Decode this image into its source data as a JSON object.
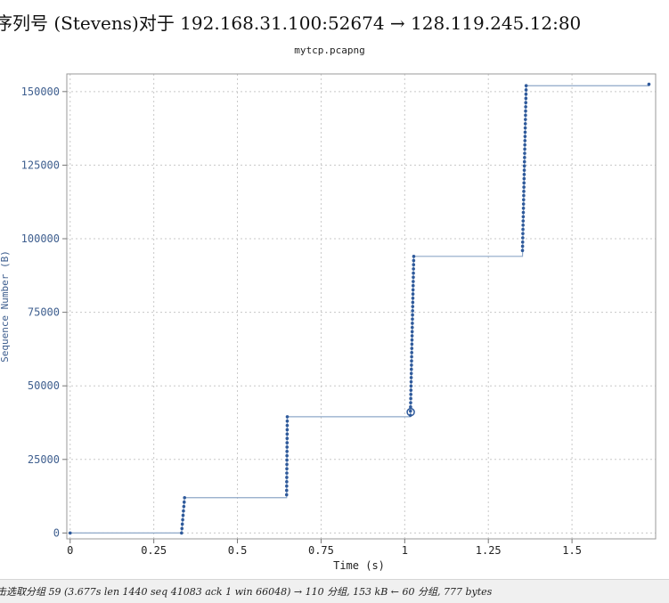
{
  "window": {
    "title": "序列号 (Stevens)对于 192.168.31.100:52674 → 128.119.245.12:80"
  },
  "chart_data": {
    "type": "scatter",
    "title": "序列号 (Stevens)对于 192.168.31.100:52674 → 128.119.245.12:80",
    "subtitle": "mytcp.pcapng",
    "xlabel": "Time (s)",
    "ylabel": "Sequence Number (B)",
    "xlim": [
      -0.01,
      1.75
    ],
    "ylim": [
      -2000,
      156000
    ],
    "x_ticks": [
      0,
      0.25,
      0.5,
      0.75,
      1,
      1.25,
      1.5
    ],
    "x_tick_labels": [
      "0",
      "0.25",
      "0.5",
      "0.75",
      "1",
      "1.25",
      "1.5"
    ],
    "y_ticks": [
      0,
      25000,
      50000,
      75000,
      100000,
      125000,
      150000
    ],
    "y_tick_labels": [
      "0",
      "25000",
      "50000",
      "75000",
      "100000",
      "125000",
      "150000"
    ],
    "grid": true,
    "point_color": "#2f5a9b",
    "line_color": "#8ea8c8",
    "selected_point": {
      "x": 1.018,
      "y": 41083
    },
    "segments": [
      {
        "t0": 0.333,
        "t1": 0.342,
        "y0": 0,
        "y1": 12000
      },
      {
        "t0": 0.647,
        "t1": 0.649,
        "y0": 13000,
        "y1": 39500
      },
      {
        "t0": 1.017,
        "t1": 1.027,
        "y0": 40000,
        "y1": 94000
      },
      {
        "t0": 1.352,
        "t1": 1.363,
        "y0": 96000,
        "y1": 152000
      }
    ],
    "extra_points": [
      [
        0.0,
        0
      ],
      [
        1.73,
        152500
      ]
    ],
    "throughput_line": [
      [
        0.0,
        0
      ],
      [
        0.333,
        0
      ],
      [
        0.342,
        12000
      ],
      [
        0.647,
        12000
      ],
      [
        0.649,
        39500
      ],
      [
        1.017,
        39500
      ],
      [
        1.027,
        94000
      ],
      [
        1.352,
        94000
      ],
      [
        1.363,
        152000
      ],
      [
        1.73,
        152000
      ],
      [
        1.73,
        152500
      ]
    ]
  },
  "status": {
    "text": "击选取分组 59 (3.677s len 1440 seq 41083 ack 1 win 66048) → 110 分组, 153 kB ← 60 分组, 777 bytes"
  }
}
